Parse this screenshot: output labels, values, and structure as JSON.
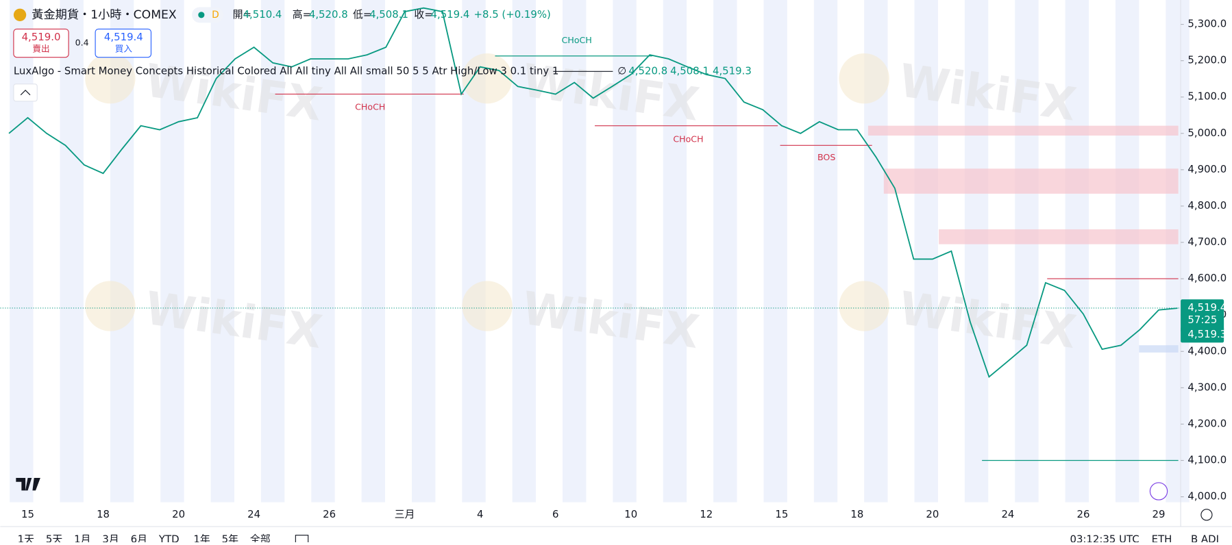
{
  "header": {
    "symbol": "黃金期貨・1小時・COMEX",
    "badge": "D",
    "open_label": "開=",
    "open": "4,510.4",
    "high_label": "高=",
    "high": "4,520.8",
    "low_label": "低=",
    "low": "4,508.1",
    "close_label": "收=",
    "close": "4,519.4",
    "change": "+8.5 (+0.19%)"
  },
  "trade": {
    "sell_price": "4,519.0",
    "sell_label": "賣出",
    "spread": "0.4",
    "buy_price": "4,519.4",
    "buy_label": "買入"
  },
  "indicator": {
    "name": "LuxAlgo - Smart Money Concepts Historical Colored All All tiny All All small 50 5 5 Atr High/Low 3 0.1 tiny 1",
    "symbol": "∅",
    "v1": "4,520.8",
    "v2": "4,508.1",
    "v3": "4,519.3"
  },
  "watermark": "WikiFX",
  "toolbar": {
    "ranges": [
      "1天",
      "5天",
      "1月",
      "3月",
      "6月",
      "YTD",
      "1年",
      "5年",
      "全部"
    ],
    "time": "03:12:35 UTC",
    "session": "ETH",
    "adj": "B ADJ"
  },
  "chart_data": {
    "type": "line",
    "color": "#089981",
    "categories": [
      null,
      "15",
      null,
      null,
      null,
      "18",
      null,
      null,
      null,
      "20",
      null,
      null,
      null,
      "24",
      null,
      null,
      null,
      "26",
      null,
      null,
      null,
      "三月",
      null,
      null,
      null,
      "4",
      null,
      null,
      null,
      "6",
      null,
      null,
      null,
      "10",
      null,
      null,
      null,
      "12",
      null,
      null,
      null,
      "15",
      null,
      null,
      null,
      "18",
      null,
      null,
      null,
      "20",
      null,
      null,
      null,
      "24",
      null,
      null,
      null,
      "26",
      null,
      null,
      null,
      "29",
      null
    ],
    "values": [
      5000,
      5043,
      5000,
      4967,
      4913,
      4890,
      4957,
      5021,
      5010,
      5032,
      5043,
      5151,
      5205,
      5237,
      5194,
      5183,
      5205,
      5205,
      5205,
      5216,
      5237,
      5335,
      5345,
      5335,
      5108,
      5183,
      5173,
      5129,
      5119,
      5108,
      5140,
      5097,
      5129,
      5162,
      5216,
      5205,
      5183,
      5162,
      5151,
      5086,
      5065,
      5021,
      5000,
      5032,
      5010,
      5010,
      4935,
      4849,
      4654,
      4654,
      4676,
      4481,
      4330,
      4373,
      4417,
      4589,
      4568,
      4503,
      4406,
      4417,
      4460,
      4514,
      4519
    ],
    "ylim": [
      3985,
      5367
    ],
    "yticks": [
      {
        "value": 4000,
        "label": "4,000.0"
      },
      {
        "value": 4100,
        "label": "4,100.0"
      },
      {
        "value": 4200,
        "label": "4,200.0"
      },
      {
        "value": 4300,
        "label": "4,300.0"
      },
      {
        "value": 4400,
        "label": "4,400.0"
      },
      {
        "value": 4500,
        "label": "4,500.0"
      },
      {
        "value": 4600,
        "label": "4,600.0"
      },
      {
        "value": 4700,
        "label": "4,700.0"
      },
      {
        "value": 4800,
        "label": "4,800.0"
      },
      {
        "value": 4900,
        "label": "4,900.0"
      },
      {
        "value": 5000,
        "label": "5,000.0"
      },
      {
        "value": 5100,
        "label": "5,100.0"
      },
      {
        "value": 5200,
        "label": "5,200.0"
      },
      {
        "value": 5300,
        "label": "5,300.0"
      }
    ],
    "price_line": {
      "value": 4519.4,
      "label": "4,519.4"
    },
    "countdown": "57:25",
    "indicator_price": {
      "value": 4519.3,
      "label": "4,519.3"
    },
    "annotations": [
      {
        "label": "CHoCH",
        "level": 5213,
        "color": "#089981"
      },
      {
        "label": "CHoCH",
        "level": 5108,
        "color": "#d1314a"
      },
      {
        "label": "CHoCH",
        "level": 5021,
        "color": "#d1314a"
      },
      {
        "label": "BOS",
        "level": 4967,
        "color": "#d1314a"
      },
      {
        "level": 4600,
        "color": "#d1314a"
      },
      {
        "level": 4100,
        "color": "#089981"
      }
    ],
    "zones": [
      {
        "top": 5021,
        "bottom": 4994,
        "color": "#f7c5cd"
      },
      {
        "top": 4903,
        "bottom": 4834,
        "color": "#f7c5cd"
      },
      {
        "top": 4736,
        "bottom": 4695,
        "color": "#f7c5cd"
      },
      {
        "top": 4417,
        "bottom": 4397,
        "color": "#c9d8f5"
      }
    ]
  }
}
